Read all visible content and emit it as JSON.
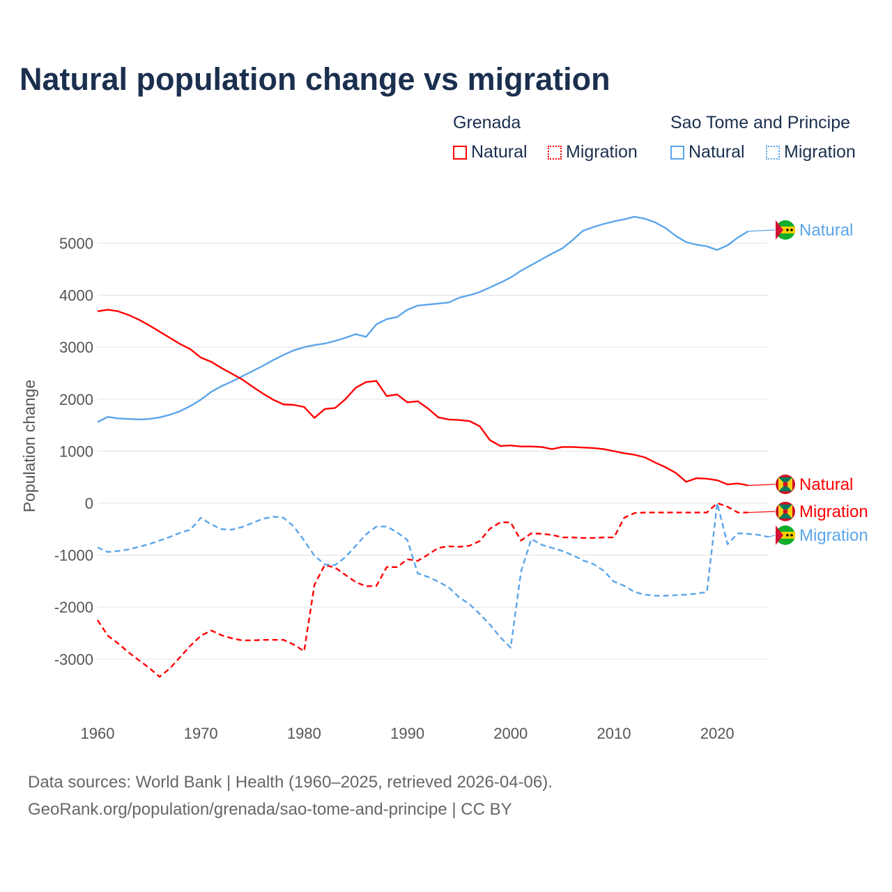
{
  "title": "Natural population change vs migration",
  "legend": {
    "groups": [
      {
        "name": "Grenada",
        "items": [
          {
            "label": "Natural",
            "style": "solid"
          },
          {
            "label": "Migration",
            "style": "dotted"
          }
        ],
        "color": "#ff0000"
      },
      {
        "name": "Sao Tome and Principe",
        "items": [
          {
            "label": "Natural",
            "style": "solid"
          },
          {
            "label": "Migration",
            "style": "dotted"
          }
        ],
        "color": "#5ba5ea"
      }
    ]
  },
  "footer": {
    "line1": "Data sources: World Bank | Health (1960–2025, retrieved 2026-04-06).",
    "line2": "GeoRank.org/population/grenada/sao-tome-and-principe | CC BY"
  },
  "chart_data": {
    "type": "line",
    "title": "Natural population change vs migration",
    "xlabel": "",
    "ylabel": "Population change",
    "xlim": [
      1960,
      2025
    ],
    "ylim": [
      -3000,
      5000
    ],
    "yticks": [
      5000,
      4000,
      3000,
      2000,
      1000,
      0,
      -1000,
      -2000,
      -3000
    ],
    "xticks": [
      1960,
      1970,
      1980,
      1990,
      2000,
      2010,
      2020
    ],
    "grid": true,
    "x_start": 1960,
    "series": [
      {
        "name": "Sao Tome and Principe Natural",
        "end_label": "Natural",
        "color": "#5ba5ea",
        "dash": false,
        "values": [
          1560,
          1660,
          1630,
          1620,
          1610,
          1620,
          1650,
          1700,
          1770,
          1870,
          1990,
          2140,
          2250,
          2340,
          2440,
          2540,
          2640,
          2750,
          2850,
          2940,
          3000,
          3040,
          3070,
          3120,
          3180,
          3250,
          3200,
          3440,
          3540,
          3580,
          3720,
          3800,
          3820,
          3840,
          3860,
          3950,
          4000,
          4060,
          4150,
          4240,
          4340,
          4470,
          4580,
          4690,
          4800,
          4900,
          5060,
          5240,
          5310,
          5370,
          5420,
          5460,
          5510,
          5470,
          5400,
          5290,
          5140,
          5020,
          4970,
          4940,
          4870,
          4960,
          5110,
          5230
        ]
      },
      {
        "name": "Grenada Natural",
        "end_label": "Natural",
        "color": "#ff0000",
        "dash": false,
        "values": [
          3690,
          3720,
          3690,
          3620,
          3530,
          3420,
          3300,
          3180,
          3060,
          2960,
          2800,
          2720,
          2600,
          2490,
          2380,
          2240,
          2110,
          1990,
          1900,
          1890,
          1850,
          1640,
          1810,
          1830,
          2000,
          2220,
          2330,
          2350,
          2060,
          2090,
          1940,
          1960,
          1820,
          1650,
          1610,
          1600,
          1580,
          1480,
          1210,
          1100,
          1110,
          1090,
          1090,
          1080,
          1040,
          1080,
          1080,
          1070,
          1060,
          1040,
          1000,
          960,
          930,
          880,
          780,
          690,
          580,
          410,
          480,
          470,
          440,
          360,
          380,
          340
        ]
      },
      {
        "name": "Grenada Migration",
        "end_label": "Migration",
        "color": "#ff0000",
        "dash": true,
        "values": [
          -2250,
          -2550,
          -2700,
          -2870,
          -3020,
          -3170,
          -3340,
          -3180,
          -2960,
          -2740,
          -2550,
          -2450,
          -2540,
          -2600,
          -2640,
          -2640,
          -2630,
          -2630,
          -2630,
          -2720,
          -2850,
          -1570,
          -1190,
          -1240,
          -1380,
          -1520,
          -1600,
          -1590,
          -1230,
          -1230,
          -1080,
          -1110,
          -990,
          -860,
          -830,
          -840,
          -820,
          -730,
          -490,
          -370,
          -370,
          -720,
          -580,
          -590,
          -610,
          -660,
          -660,
          -670,
          -670,
          -660,
          -660,
          -280,
          -190,
          -180,
          -180,
          -180,
          -180,
          -180,
          -180,
          -180,
          0,
          -70,
          -180,
          -180
        ]
      },
      {
        "name": "Sao Tome and Principe Migration",
        "end_label": "Migration",
        "color": "#5ba5ea",
        "dash": true,
        "values": [
          -850,
          -940,
          -920,
          -890,
          -840,
          -790,
          -720,
          -650,
          -570,
          -510,
          -280,
          -410,
          -500,
          -510,
          -460,
          -380,
          -300,
          -260,
          -280,
          -450,
          -720,
          -1010,
          -1180,
          -1190,
          -1040,
          -820,
          -600,
          -450,
          -450,
          -560,
          -710,
          -1350,
          -1420,
          -1510,
          -1620,
          -1810,
          -1940,
          -2130,
          -2340,
          -2580,
          -2780,
          -1320,
          -690,
          -800,
          -860,
          -920,
          -1000,
          -1100,
          -1170,
          -1300,
          -1510,
          -1590,
          -1710,
          -1760,
          -1780,
          -1780,
          -1770,
          -1760,
          -1740,
          -1710,
          0,
          -790,
          -580,
          -590,
          -610,
          -650
        ]
      }
    ]
  }
}
